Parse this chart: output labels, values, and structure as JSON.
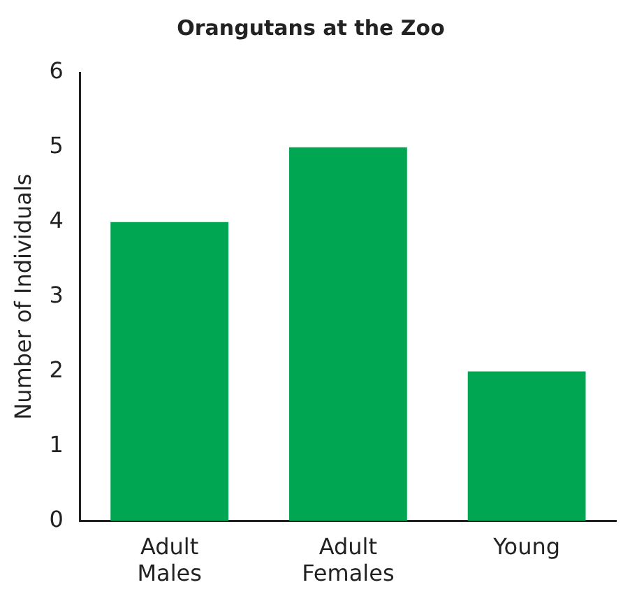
{
  "chart_data": {
    "type": "bar",
    "title": "Orangutans at the Zoo",
    "ylabel": "Number of Individuals",
    "categories": [
      "Adult Males",
      "Adult Females",
      "Young"
    ],
    "values": [
      4,
      5,
      2
    ],
    "color": "#00a651",
    "ylim": [
      0,
      6
    ],
    "yticks": [
      0,
      1,
      2,
      3,
      4,
      5,
      6
    ],
    "grid": false,
    "legend": false
  }
}
